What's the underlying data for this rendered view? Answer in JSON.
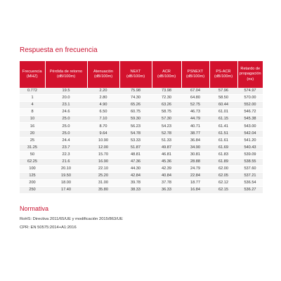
{
  "title": "Respuesta en frecuencia",
  "table": {
    "headers": [
      [
        "Frecuencia",
        "(MHZ)"
      ],
      [
        "Pérdida de retorno",
        "(dB/100m)"
      ],
      [
        "Atenuación",
        "(dB/100m)"
      ],
      [
        "NEXT",
        "(dB/100m)"
      ],
      [
        "ACR",
        "(dB/100m)"
      ],
      [
        "PSNEXT",
        "(dB/100m)"
      ],
      [
        "PS-ACR",
        "(dB/100m)"
      ],
      [
        "Retardo de",
        "propagación",
        "(ns)"
      ]
    ],
    "rows": [
      [
        "0.772",
        "19.5",
        "2.20",
        "75.98",
        "73.98",
        "67.04",
        "57.96",
        "574.97"
      ],
      [
        "1",
        "20.0",
        "2.80",
        "74.30",
        "72.30",
        "64.80",
        "58.50",
        "570.00"
      ],
      [
        "4",
        "23.1",
        "4.90",
        "65.26",
        "63.26",
        "52.75",
        "60.44",
        "552.00"
      ],
      [
        "8",
        "24.6",
        "6.50",
        "60.75",
        "58.75",
        "46.73",
        "61.01",
        "546.72"
      ],
      [
        "10",
        "25.0",
        "7.10",
        "59.30",
        "57.30",
        "44.79",
        "61.15",
        "545.38"
      ],
      [
        "16",
        "25.0",
        "8.70",
        "56.23",
        "54.23",
        "40.71",
        "61.41",
        "543.00"
      ],
      [
        "20",
        "25.0",
        "9.64",
        "54.78",
        "52.78",
        "38.77",
        "61.51",
        "542.04"
      ],
      [
        "25",
        "24.4",
        "10.90",
        "53.33",
        "51.33",
        "36.84",
        "61.61",
        "541.20"
      ],
      [
        "31.25",
        "23.7",
        "12.00",
        "51.87",
        "49.87",
        "34.90",
        "61.69",
        "540.43"
      ],
      [
        "50",
        "22.3",
        "15.70",
        "48.81",
        "46.81",
        "30.81",
        "61.83",
        "539.09"
      ],
      [
        "62.25",
        "21.6",
        "16.90",
        "47.36",
        "45.36",
        "28.88",
        "61.89",
        "538.55"
      ],
      [
        "100",
        "20.10",
        "22.10",
        "44.30",
        "42.39",
        "24.79",
        "62.00",
        "537.60"
      ],
      [
        "125",
        "19.50",
        "25.20",
        "42.84",
        "40.84",
        "22.84",
        "62.05",
        "537.21"
      ],
      [
        "200",
        "18.00",
        "31.00",
        "39.78",
        "37.78",
        "18.77",
        "62.12",
        "536.54"
      ],
      [
        "250",
        "17.40",
        "35.80",
        "38.33",
        "36.33",
        "16.84",
        "62.15",
        "536.27"
      ]
    ]
  },
  "normativa": {
    "title": "Normativa",
    "lines": [
      "RoHS: Directiva 2011/65/UE y modificación 2015/863/UE",
      "CPR: EN 50575:2014+A1:2016"
    ]
  }
}
